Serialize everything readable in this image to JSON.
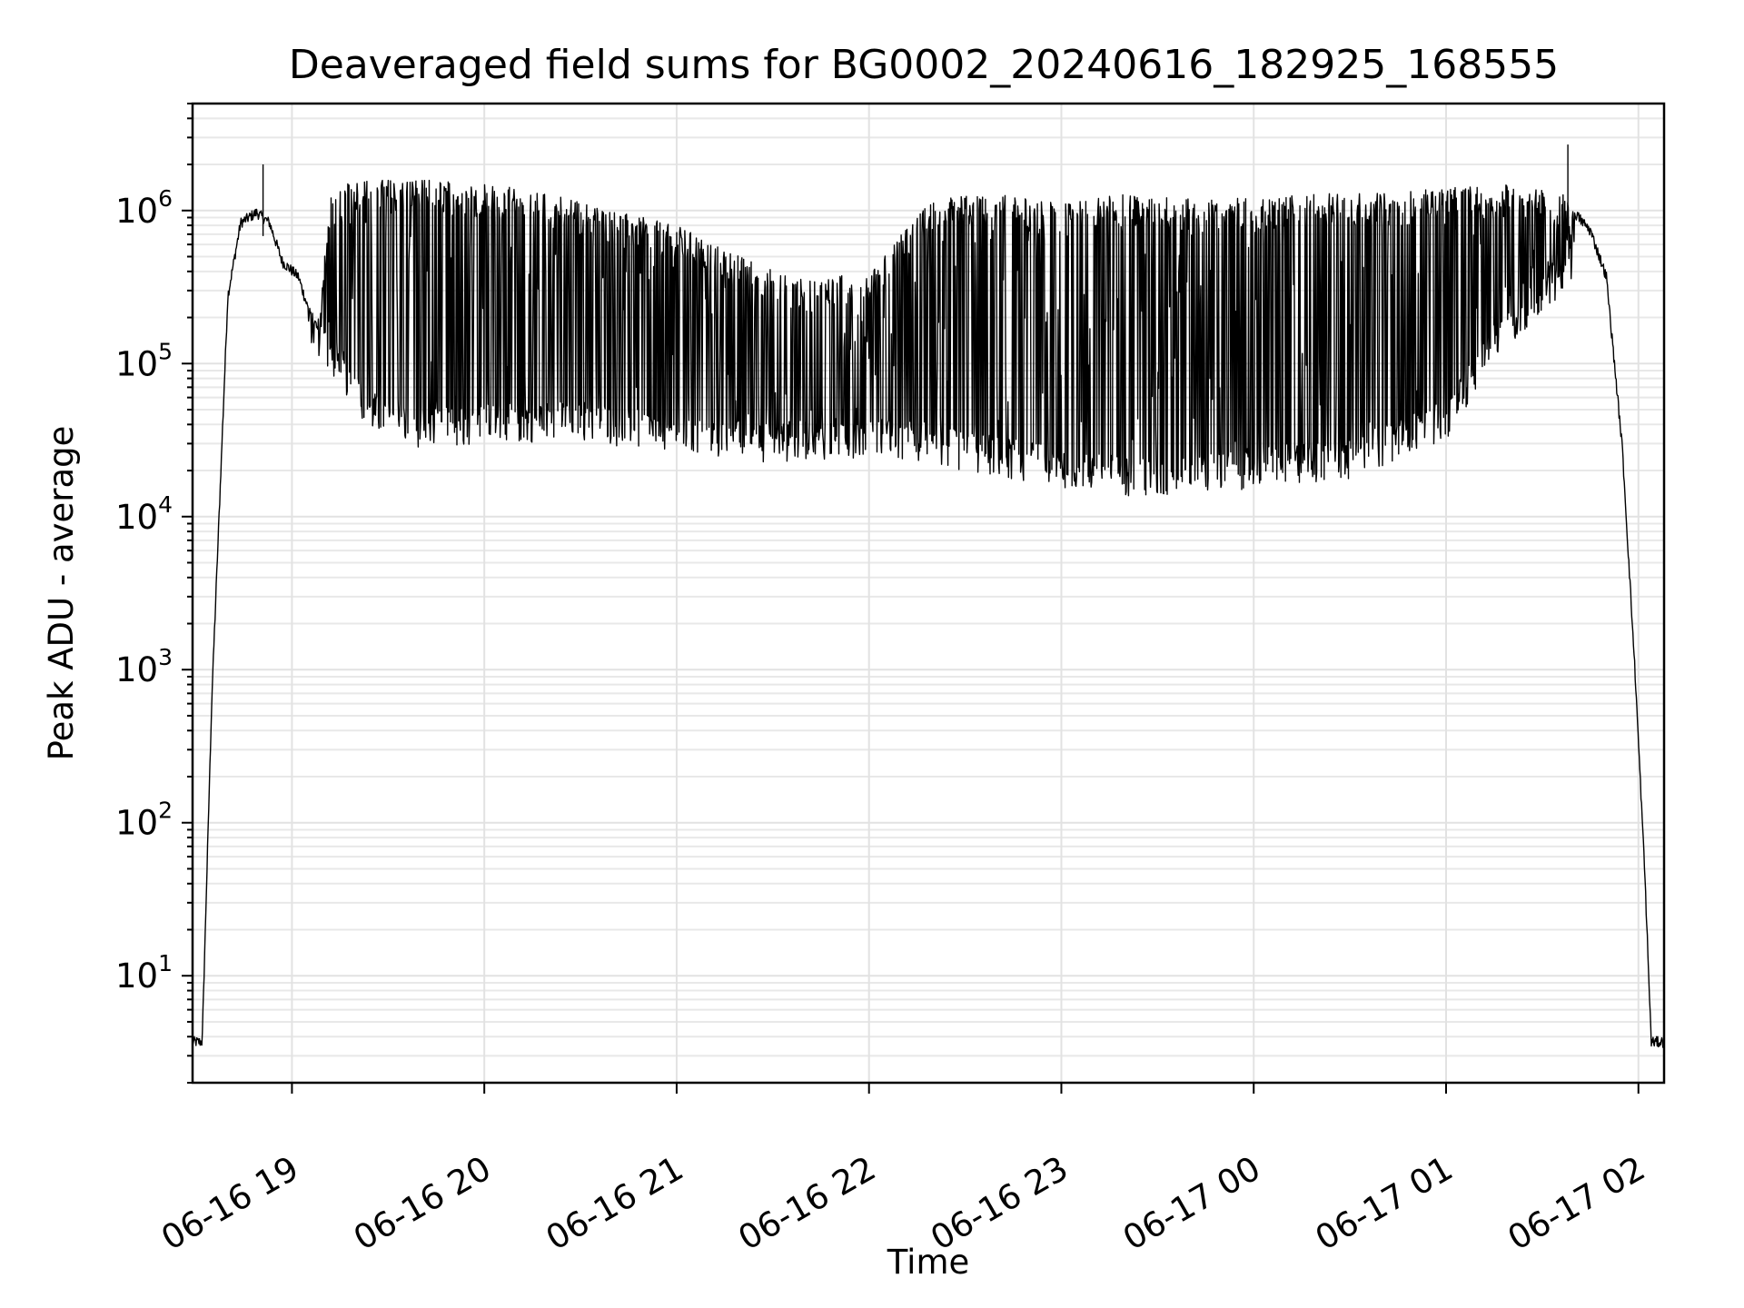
{
  "chart_data": {
    "type": "line",
    "title": "Deaveraged field sums for BG0002_20240616_182925_168555",
    "xlabel": "Time",
    "ylabel": "Peak ADU - average",
    "yscale": "log",
    "ylim": [
      2,
      5000000
    ],
    "xlim": [
      "2024-06-16 18:29",
      "2024-06-17 02:08"
    ],
    "grid": true,
    "x_ticks": [
      "06-16 19",
      "06-16 20",
      "06-16 21",
      "06-16 22",
      "06-16 23",
      "06-17 00",
      "06-17 01",
      "06-17 02"
    ],
    "y_ticks": [
      {
        "base": "10",
        "exp": "1"
      },
      {
        "base": "10",
        "exp": "2"
      },
      {
        "base": "10",
        "exp": "3"
      },
      {
        "base": "10",
        "exp": "4"
      },
      {
        "base": "10",
        "exp": "5"
      },
      {
        "base": "10",
        "exp": "6"
      }
    ],
    "line_color": "#000000",
    "series": [
      {
        "envelope_upper": [
          [
            "2024-06-16 18:29",
            4
          ],
          [
            "2024-06-16 18:32",
            4
          ],
          [
            "2024-06-16 18:35",
            700
          ],
          [
            "2024-06-16 18:40",
            300000
          ],
          [
            "2024-06-16 18:44",
            900000
          ],
          [
            "2024-06-16 18:49",
            1050000
          ],
          [
            "2024-06-16 18:53",
            900000
          ],
          [
            "2024-06-16 18:57",
            500000
          ],
          [
            "2024-06-16 19:02",
            400000
          ],
          [
            "2024-06-16 19:05",
            250000
          ],
          [
            "2024-06-16 19:08",
            180000
          ],
          [
            "2024-06-16 19:12",
            1300000
          ],
          [
            "2024-06-16 19:20",
            1600000
          ],
          [
            "2024-06-16 19:40",
            1600000
          ],
          [
            "2024-06-16 20:00",
            1500000
          ],
          [
            "2024-06-16 20:20",
            1300000
          ],
          [
            "2024-06-16 20:40",
            1000000
          ],
          [
            "2024-06-16 21:00",
            800000
          ],
          [
            "2024-06-16 21:20",
            500000
          ],
          [
            "2024-06-16 21:40",
            350000
          ],
          [
            "2024-06-16 22:00",
            400000
          ],
          [
            "2024-06-16 22:20",
            1200000
          ],
          [
            "2024-06-16 22:40",
            1300000
          ],
          [
            "2024-06-16 23:00",
            1100000
          ],
          [
            "2024-06-16 23:20",
            1300000
          ],
          [
            "2024-06-16 23:40",
            1200000
          ],
          [
            "2024-06-17 00:00",
            1200000
          ],
          [
            "2024-06-17 00:20",
            1300000
          ],
          [
            "2024-06-17 00:40",
            1300000
          ],
          [
            "2024-06-17 01:00",
            1400000
          ],
          [
            "2024-06-17 01:20",
            1500000
          ],
          [
            "2024-06-17 01:36",
            1300000
          ],
          [
            "2024-06-17 01:45",
            800000
          ],
          [
            "2024-06-17 01:50",
            400000
          ],
          [
            "2024-06-17 01:55",
            30000
          ],
          [
            "2024-06-17 01:59",
            1000
          ],
          [
            "2024-06-17 02:02",
            50
          ],
          [
            "2024-06-17 02:04",
            4
          ],
          [
            "2024-06-17 02:08",
            4
          ]
        ],
        "envelope_lower": [
          [
            "2024-06-16 19:05",
            200000
          ],
          [
            "2024-06-16 19:15",
            100000
          ],
          [
            "2024-06-16 19:25",
            50000
          ],
          [
            "2024-06-16 19:40",
            40000
          ],
          [
            "2024-06-16 20:00",
            42000
          ],
          [
            "2024-06-16 20:30",
            45000
          ],
          [
            "2024-06-16 21:00",
            35000
          ],
          [
            "2024-06-16 21:30",
            32000
          ],
          [
            "2024-06-16 22:00",
            35000
          ],
          [
            "2024-06-16 22:30",
            28000
          ],
          [
            "2024-06-16 23:00",
            22000
          ],
          [
            "2024-06-16 23:30",
            18000
          ],
          [
            "2024-06-17 00:00",
            22000
          ],
          [
            "2024-06-17 00:30",
            25000
          ],
          [
            "2024-06-17 01:00",
            45000
          ],
          [
            "2024-06-17 01:15",
            150000
          ],
          [
            "2024-06-17 01:30",
            300000
          ],
          [
            "2024-06-17 01:40",
            500000
          ]
        ],
        "spikes_max": [
          [
            "2024-06-16 18:51",
            2000000
          ],
          [
            "2024-06-17 01:38",
            2700000
          ]
        ]
      }
    ]
  }
}
